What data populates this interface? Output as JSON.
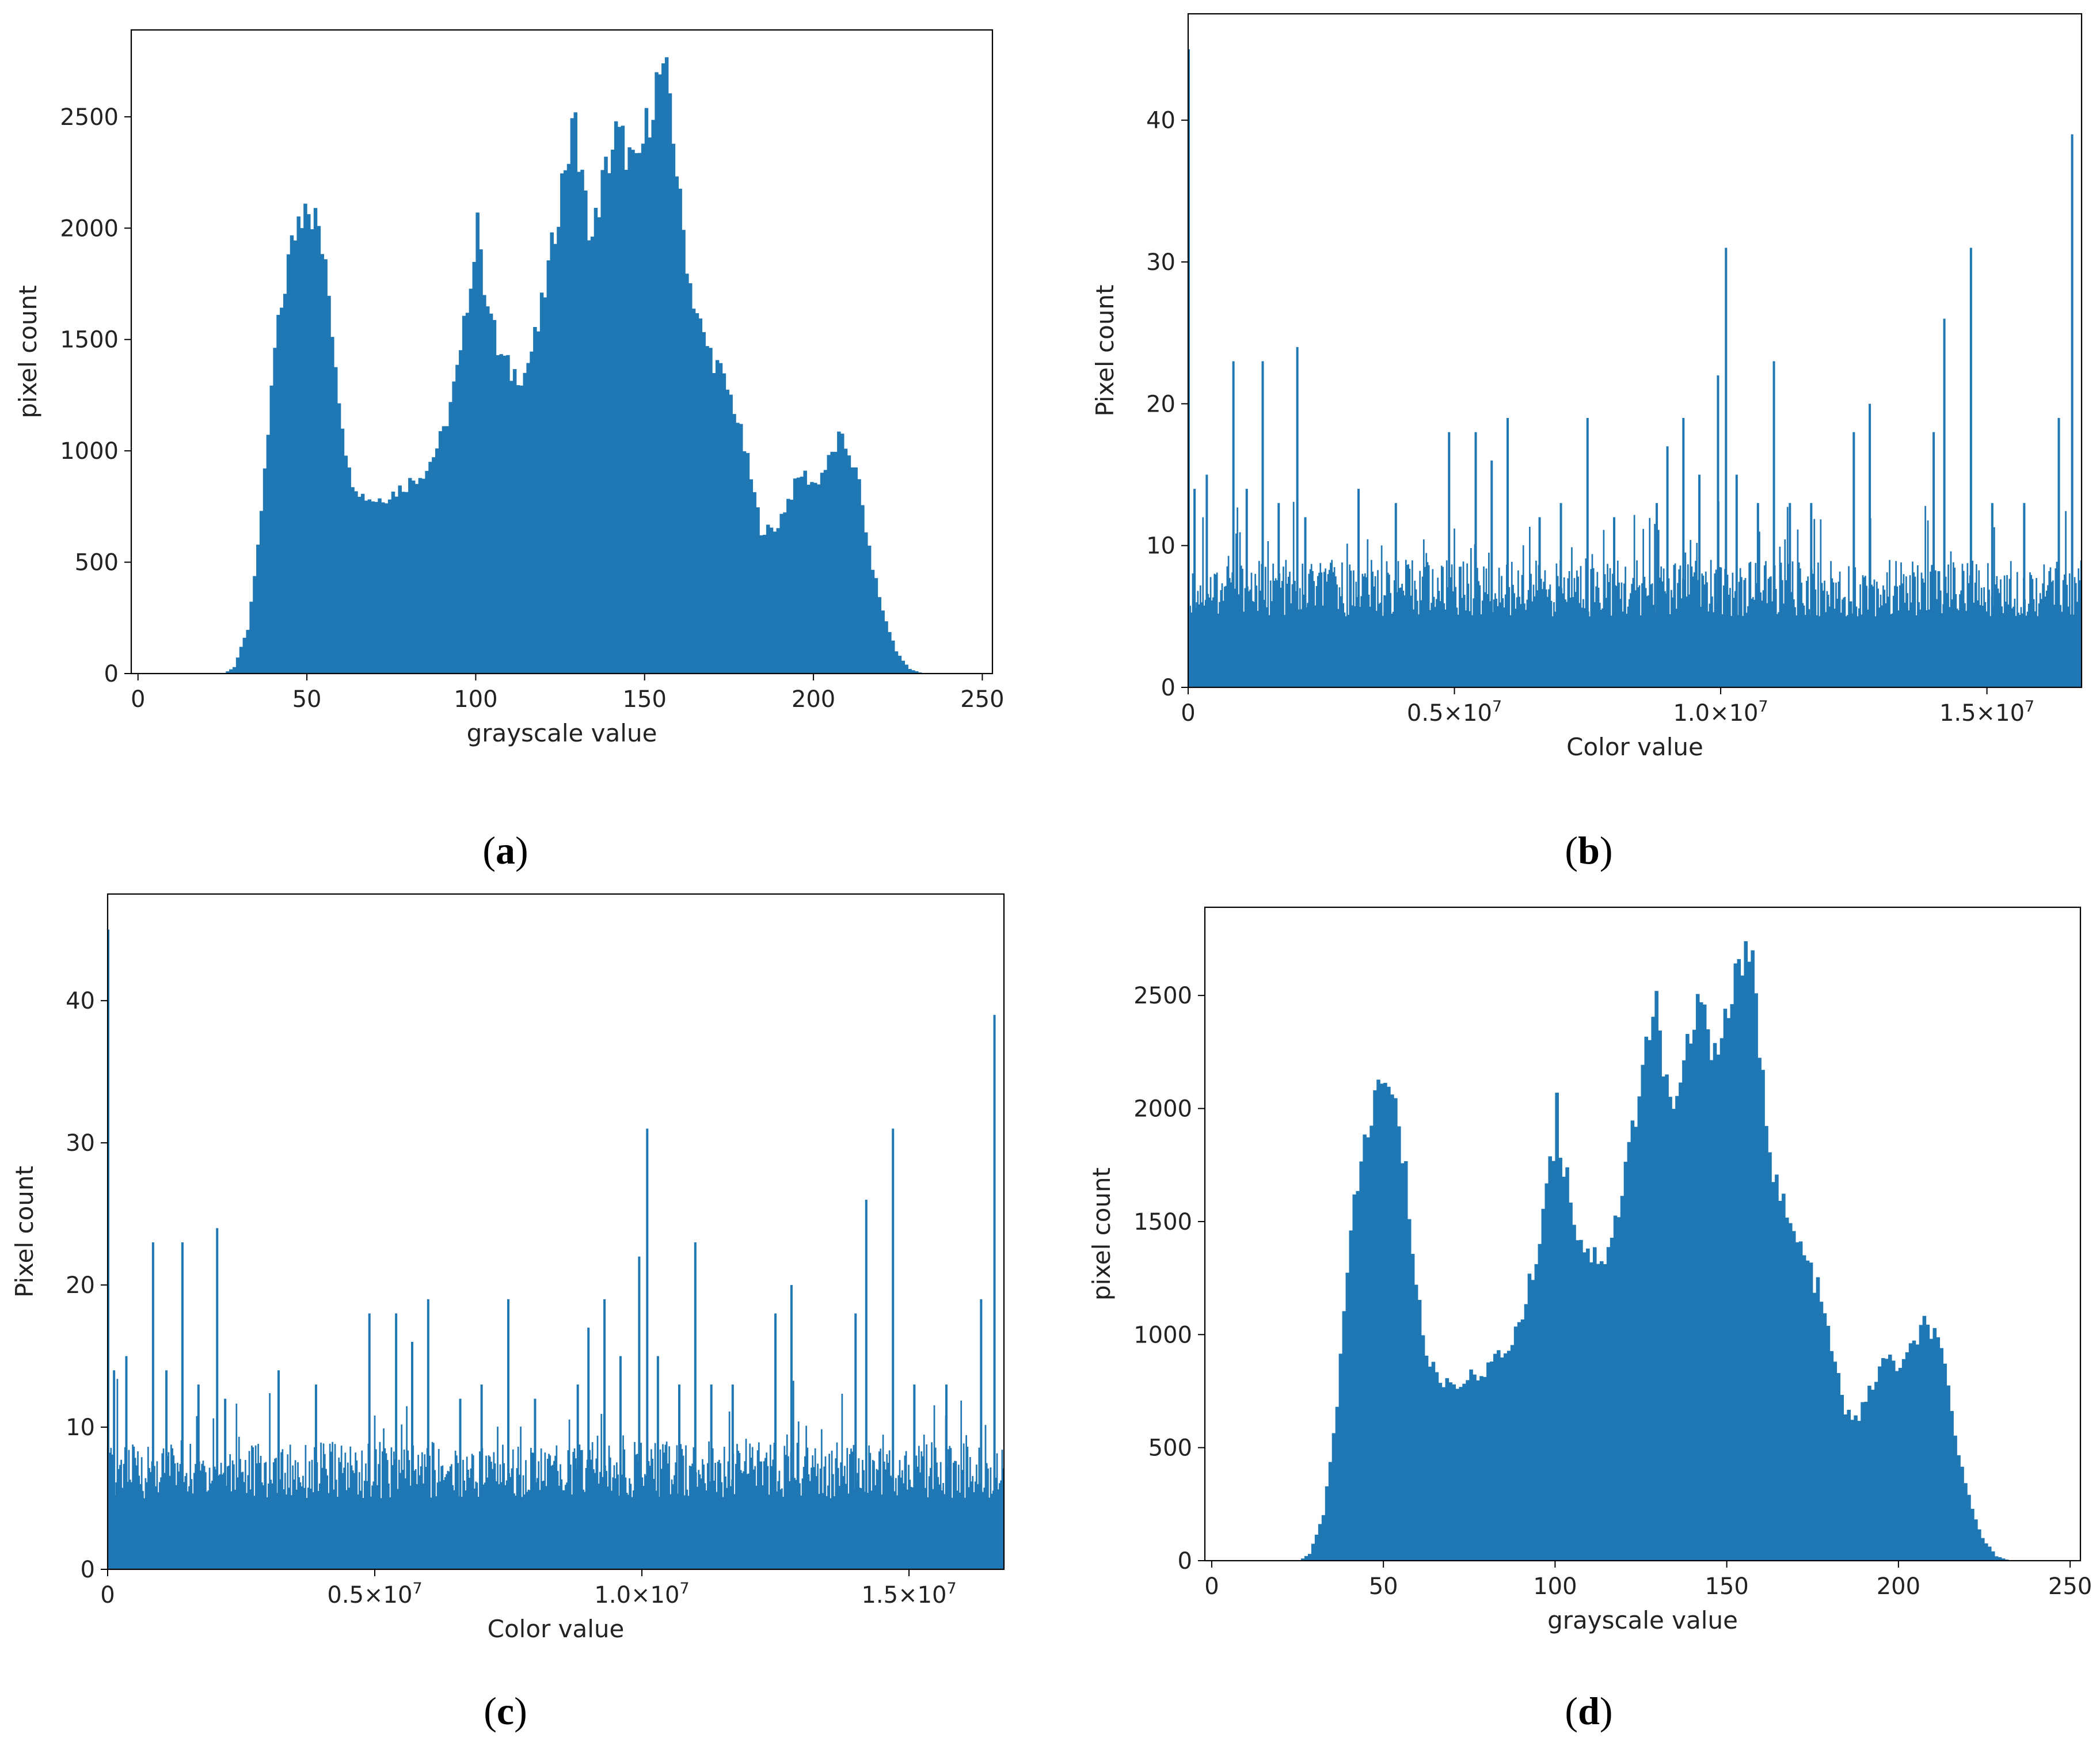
{
  "colors": {
    "bar": "#1f77b4",
    "frame": "#000000",
    "text": "#222222"
  },
  "chart_data": [
    {
      "panel": "a",
      "type": "bar",
      "caption": "a",
      "xlabel": "grayscale value",
      "ylabel": "pixel count",
      "xlim": [
        -2,
        253
      ],
      "ylim": [
        0,
        2890
      ],
      "xticks": [
        {
          "v": 0,
          "label": "0"
        },
        {
          "v": 50,
          "label": "50"
        },
        {
          "v": 100,
          "label": "100"
        },
        {
          "v": 150,
          "label": "150"
        },
        {
          "v": 200,
          "label": "200"
        },
        {
          "v": 250,
          "label": "250"
        }
      ],
      "yticks": [
        {
          "v": 0,
          "label": "0"
        },
        {
          "v": 500,
          "label": "500"
        },
        {
          "v": 1000,
          "label": "1000"
        },
        {
          "v": 1500,
          "label": "1500"
        },
        {
          "v": 2000,
          "label": "2000"
        },
        {
          "v": 2500,
          "label": "2500"
        }
      ],
      "profile": [
        [
          0,
          0
        ],
        [
          25,
          0
        ],
        [
          28,
          30
        ],
        [
          32,
          200
        ],
        [
          36,
          700
        ],
        [
          40,
          1450
        ],
        [
          44,
          1850
        ],
        [
          47,
          2050
        ],
        [
          50,
          2100
        ],
        [
          53,
          2000
        ],
        [
          56,
          1700
        ],
        [
          59,
          1250
        ],
        [
          62,
          900
        ],
        [
          66,
          800
        ],
        [
          70,
          780
        ],
        [
          75,
          810
        ],
        [
          80,
          860
        ],
        [
          85,
          920
        ],
        [
          90,
          1080
        ],
        [
          95,
          1420
        ],
        [
          98,
          1800
        ],
        [
          100,
          1900
        ],
        [
          103,
          1700
        ],
        [
          106,
          1450
        ],
        [
          110,
          1350
        ],
        [
          114,
          1350
        ],
        [
          118,
          1550
        ],
        [
          122,
          1900
        ],
        [
          126,
          2300
        ],
        [
          128,
          2400
        ],
        [
          131,
          2200
        ],
        [
          134,
          1950
        ],
        [
          137,
          2200
        ],
        [
          141,
          2420
        ],
        [
          144,
          2350
        ],
        [
          147,
          2250
        ],
        [
          150,
          2450
        ],
        [
          153,
          2650
        ],
        [
          155,
          2720
        ],
        [
          157,
          2600
        ],
        [
          160,
          2100
        ],
        [
          163,
          1750
        ],
        [
          167,
          1500
        ],
        [
          172,
          1350
        ],
        [
          176,
          1200
        ],
        [
          180,
          950
        ],
        [
          184,
          650
        ],
        [
          188,
          640
        ],
        [
          192,
          780
        ],
        [
          196,
          900
        ],
        [
          200,
          850
        ],
        [
          204,
          950
        ],
        [
          207,
          1050
        ],
        [
          210,
          1000
        ],
        [
          213,
          850
        ],
        [
          216,
          550
        ],
        [
          220,
          280
        ],
        [
          224,
          100
        ],
        [
          228,
          20
        ],
        [
          232,
          0
        ],
        [
          252,
          0
        ]
      ],
      "spikes": [
        [
          100,
          2070
        ],
        [
          129,
          2520
        ],
        [
          155,
          2740
        ],
        [
          143,
          2460
        ],
        [
          49,
          2110
        ]
      ]
    },
    {
      "panel": "b",
      "type": "bar",
      "caption": "b",
      "xlabel": "Color value",
      "ylabel": "Pixel count",
      "xlim": [
        0,
        16777215
      ],
      "ylim": [
        0,
        47.5
      ],
      "xticks": [
        {
          "v": 0,
          "label": "0"
        },
        {
          "v": 5000000,
          "mant": "0.5×10",
          "exp": "7"
        },
        {
          "v": 10000000,
          "mant": "1.0×10",
          "exp": "7"
        },
        {
          "v": 15000000,
          "mant": "1.5×10",
          "exp": "7"
        }
      ],
      "yticks": [
        {
          "v": 0,
          "label": "0"
        },
        {
          "v": 10,
          "label": "10"
        },
        {
          "v": 20,
          "label": "20"
        },
        {
          "v": 30,
          "label": "30"
        },
        {
          "v": 40,
          "label": "40"
        }
      ],
      "spikes": [
        [
          0,
          45
        ],
        [
          120000,
          14
        ],
        [
          350000,
          15
        ],
        [
          850000,
          23
        ],
        [
          1100000,
          14
        ],
        [
          1400000,
          23
        ],
        [
          1700000,
          13
        ],
        [
          2050000,
          24
        ],
        [
          2200000,
          12
        ],
        [
          3200000,
          14
        ],
        [
          3900000,
          13
        ],
        [
          4900000,
          18
        ],
        [
          5400000,
          18
        ],
        [
          5700000,
          16
        ],
        [
          6000000,
          19
        ],
        [
          6600000,
          12
        ],
        [
          7000000,
          13
        ],
        [
          7500000,
          19
        ],
        [
          8000000,
          12
        ],
        [
          8800000,
          13
        ],
        [
          9000000,
          17
        ],
        [
          9300000,
          19
        ],
        [
          9600000,
          15
        ],
        [
          9950000,
          22
        ],
        [
          10100000,
          31
        ],
        [
          10300000,
          15
        ],
        [
          10700000,
          13
        ],
        [
          11000000,
          23
        ],
        [
          11300000,
          13
        ],
        [
          11700000,
          13
        ],
        [
          12500000,
          18
        ],
        [
          12800000,
          20
        ],
        [
          14000000,
          18
        ],
        [
          14200000,
          26
        ],
        [
          14700000,
          31
        ],
        [
          15100000,
          13
        ],
        [
          15700000,
          13
        ],
        [
          16350000,
          19
        ],
        [
          16600000,
          39
        ]
      ]
    },
    {
      "panel": "c",
      "type": "bar",
      "caption": "c",
      "xlabel": "Color value",
      "ylabel": "Pixel count",
      "xlim": [
        0,
        16777215
      ],
      "ylim": [
        0,
        47.5
      ],
      "xticks": [
        {
          "v": 0,
          "label": "0"
        },
        {
          "v": 5000000,
          "mant": "0.5×10",
          "exp": "7"
        },
        {
          "v": 10000000,
          "mant": "1.0×10",
          "exp": "7"
        },
        {
          "v": 15000000,
          "mant": "1.5×10",
          "exp": "7"
        }
      ],
      "yticks": [
        {
          "v": 0,
          "label": "0"
        },
        {
          "v": 10,
          "label": "10"
        },
        {
          "v": 20,
          "label": "20"
        },
        {
          "v": 30,
          "label": "30"
        },
        {
          "v": 40,
          "label": "40"
        }
      ],
      "spikes": [
        [
          0,
          45
        ],
        [
          120000,
          14
        ],
        [
          350000,
          15
        ],
        [
          850000,
          23
        ],
        [
          1100000,
          14
        ],
        [
          1400000,
          23
        ],
        [
          1700000,
          13
        ],
        [
          2050000,
          24
        ],
        [
          2200000,
          12
        ],
        [
          3200000,
          14
        ],
        [
          3900000,
          13
        ],
        [
          4900000,
          18
        ],
        [
          5400000,
          18
        ],
        [
          5700000,
          16
        ],
        [
          6000000,
          19
        ],
        [
          6600000,
          12
        ],
        [
          7000000,
          13
        ],
        [
          7500000,
          19
        ],
        [
          8000000,
          12
        ],
        [
          8800000,
          13
        ],
        [
          9000000,
          17
        ],
        [
          9300000,
          19
        ],
        [
          9600000,
          15
        ],
        [
          9950000,
          22
        ],
        [
          10100000,
          31
        ],
        [
          10300000,
          15
        ],
        [
          10700000,
          13
        ],
        [
          11000000,
          23
        ],
        [
          11300000,
          13
        ],
        [
          11700000,
          13
        ],
        [
          12500000,
          18
        ],
        [
          12800000,
          20
        ],
        [
          14000000,
          18
        ],
        [
          14200000,
          26
        ],
        [
          14700000,
          31
        ],
        [
          15100000,
          13
        ],
        [
          15700000,
          13
        ],
        [
          16350000,
          19
        ],
        [
          16600000,
          39
        ]
      ]
    },
    {
      "panel": "d",
      "type": "bar",
      "caption": "d",
      "xlabel": "grayscale value",
      "ylabel": "pixel count",
      "xlim": [
        -2,
        253
      ],
      "ylim": [
        0,
        2890
      ],
      "xticks": [
        {
          "v": 0,
          "label": "0"
        },
        {
          "v": 50,
          "label": "50"
        },
        {
          "v": 100,
          "label": "100"
        },
        {
          "v": 150,
          "label": "150"
        },
        {
          "v": 200,
          "label": "200"
        },
        {
          "v": 250,
          "label": "250"
        }
      ],
      "yticks": [
        {
          "v": 0,
          "label": "0"
        },
        {
          "v": 500,
          "label": "500"
        },
        {
          "v": 1000,
          "label": "1000"
        },
        {
          "v": 1500,
          "label": "1500"
        },
        {
          "v": 2000,
          "label": "2000"
        },
        {
          "v": 2500,
          "label": "2500"
        }
      ],
      "profile": [
        [
          0,
          0
        ],
        [
          25,
          0
        ],
        [
          28,
          30
        ],
        [
          32,
          200
        ],
        [
          36,
          700
        ],
        [
          40,
          1450
        ],
        [
          44,
          1850
        ],
        [
          47,
          2050
        ],
        [
          50,
          2100
        ],
        [
          53,
          2000
        ],
        [
          56,
          1700
        ],
        [
          59,
          1250
        ],
        [
          62,
          900
        ],
        [
          66,
          800
        ],
        [
          70,
          780
        ],
        [
          75,
          810
        ],
        [
          80,
          860
        ],
        [
          85,
          920
        ],
        [
          90,
          1080
        ],
        [
          95,
          1420
        ],
        [
          98,
          1800
        ],
        [
          100,
          1900
        ],
        [
          103,
          1700
        ],
        [
          106,
          1450
        ],
        [
          110,
          1350
        ],
        [
          114,
          1350
        ],
        [
          118,
          1550
        ],
        [
          122,
          1900
        ],
        [
          126,
          2300
        ],
        [
          128,
          2400
        ],
        [
          131,
          2200
        ],
        [
          134,
          1950
        ],
        [
          137,
          2200
        ],
        [
          141,
          2420
        ],
        [
          144,
          2350
        ],
        [
          147,
          2250
        ],
        [
          150,
          2450
        ],
        [
          153,
          2650
        ],
        [
          155,
          2720
        ],
        [
          157,
          2600
        ],
        [
          160,
          2100
        ],
        [
          163,
          1750
        ],
        [
          167,
          1500
        ],
        [
          172,
          1350
        ],
        [
          176,
          1200
        ],
        [
          180,
          950
        ],
        [
          184,
          650
        ],
        [
          188,
          640
        ],
        [
          192,
          780
        ],
        [
          196,
          900
        ],
        [
          200,
          850
        ],
        [
          204,
          950
        ],
        [
          207,
          1050
        ],
        [
          210,
          1000
        ],
        [
          213,
          850
        ],
        [
          216,
          550
        ],
        [
          220,
          280
        ],
        [
          224,
          100
        ],
        [
          228,
          20
        ],
        [
          232,
          0
        ],
        [
          252,
          0
        ]
      ],
      "spikes": [
        [
          100,
          2070
        ],
        [
          129,
          2520
        ],
        [
          155,
          2740
        ],
        [
          143,
          2460
        ],
        [
          49,
          2110
        ]
      ]
    }
  ]
}
